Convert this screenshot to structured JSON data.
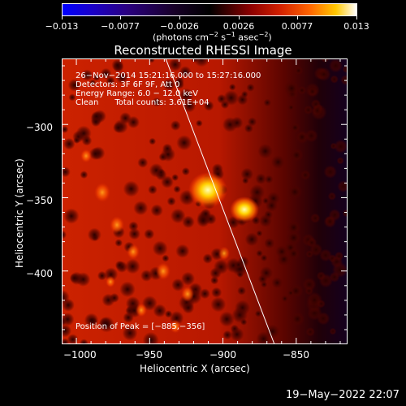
{
  "colorbar": {
    "tick_labels": [
      "−0.013",
      "−0.0077",
      "−0.0026",
      "0.0026",
      "0.0077",
      "0.013"
    ],
    "values": [
      -0.013,
      -0.0077,
      -0.0026,
      0.0026,
      0.0077,
      0.013
    ],
    "units_prefix": "(photons cm",
    "units_exp1": "−2",
    "units_mid1": " s",
    "units_exp2": "−1",
    "units_mid2": " asec",
    "units_exp3": "−2",
    "units_suffix": ")"
  },
  "title": "Reconstructed RHESSI Image",
  "info": {
    "line1": "26−Nov−2014 15:21:16.000 to 15:27:16.000",
    "line2": "Detectors: 3F 6F 9F, Att 0",
    "line3": "Energy Range: 6.0 − 12.0 keV",
    "line4_a": "Clean",
    "line4_b": "Total counts: 3.61E+04"
  },
  "peak_text": "Position of Peak = [−885,−356]",
  "axes": {
    "xlabel": "Heliocentric X (arcsec)",
    "ylabel": "Heliocentric Y (arcsec)",
    "x_ticks": [
      "−1000",
      "−950",
      "−900",
      "−850"
    ],
    "y_ticks": [
      "−300",
      "−350",
      "−400"
    ],
    "x_range": [
      -1010,
      -815
    ],
    "y_range": [
      -450,
      -255
    ]
  },
  "timestamp": "19−May−2022 22:07",
  "colors": {
    "background": "#000000",
    "foreground": "#ffffff",
    "limb_line": "#ffffff"
  }
}
